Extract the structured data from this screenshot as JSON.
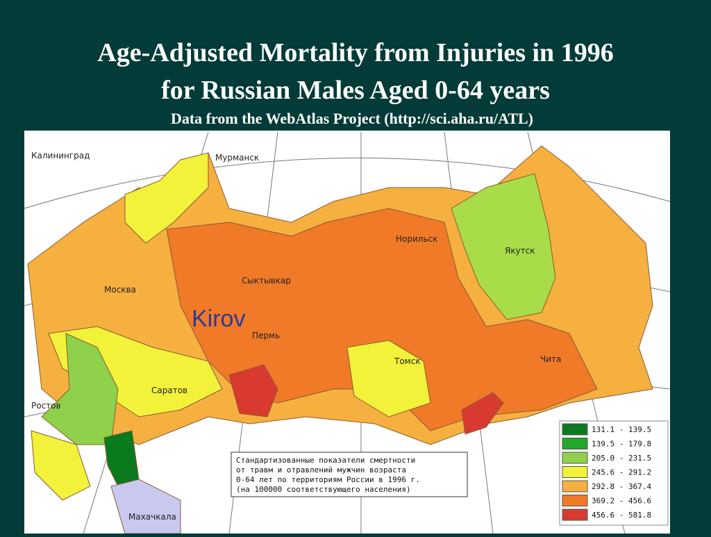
{
  "header": {
    "title_line1": "Age-Adjusted Mortality from Injuries in 1996",
    "title_line2": "for Russian Males Aged 0-64 years",
    "subtitle": "Data from the WebAtlas Project (http://sci.aha.ru/ATL)"
  },
  "map": {
    "cities": [
      "Калининград",
      "Мурманск",
      "Норильск",
      "Якутск",
      "Сыктывкар",
      "Москва",
      "Пермь",
      "Томск",
      "Чита",
      "Саратов",
      "Ростов",
      "Махачкала"
    ],
    "annotation": "Kirov",
    "caption": [
      "Стандартизованные показатели смертности",
      "от травм и отравлений мужчин возраста",
      "0-64 лет по территориям России в 1996 г.",
      "(на 100000 соответствующего населения)"
    ],
    "legend": [
      {
        "label": "131.1 - 139.5",
        "color": "#0a7a1e"
      },
      {
        "label": "139.5 - 179.8",
        "color": "#22a82a"
      },
      {
        "label": "205.0 - 231.5",
        "color": "#8fd14a"
      },
      {
        "label": "245.6 - 291.2",
        "color": "#f2f23a"
      },
      {
        "label": "292.8 - 367.4",
        "color": "#f5b040"
      },
      {
        "label": "369.2 - 456.6",
        "color": "#f07a28"
      },
      {
        "label": "456.6 - 581.8",
        "color": "#d83a30"
      }
    ]
  }
}
